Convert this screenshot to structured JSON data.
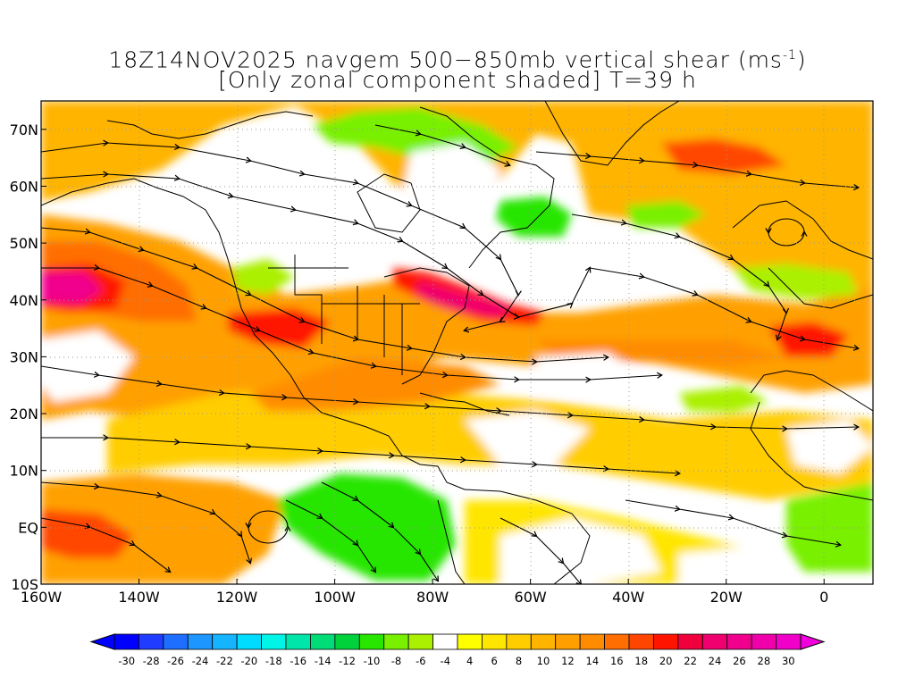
{
  "title": {
    "line1_main": "18Z14NOV2025 navgem 500−850mb vertical shear (ms",
    "line1_sup": "-1",
    "line1_close": ")",
    "line2": "[Only zonal component shaded] T=39 h"
  },
  "axes": {
    "lat_labels": [
      "70N",
      "60N",
      "50N",
      "40N",
      "30N",
      "20N",
      "10N",
      "EQ",
      "10S"
    ],
    "lat_values": [
      70,
      60,
      50,
      40,
      30,
      20,
      10,
      0,
      -10
    ],
    "lon_labels": [
      "160W",
      "140W",
      "120W",
      "100W",
      "80W",
      "60W",
      "40W",
      "20W",
      "0"
    ],
    "lon_values": [
      -160,
      -140,
      -120,
      -100,
      -80,
      -60,
      -40,
      -20,
      0
    ],
    "lat_range": [
      -10,
      75
    ],
    "lon_range": [
      -160,
      10
    ]
  },
  "colorbar": {
    "labels": [
      "-30",
      "-28",
      "-26",
      "-24",
      "-22",
      "-20",
      "-18",
      "-16",
      "-14",
      "-12",
      "-10",
      "-8",
      "-6",
      "-4",
      "4",
      "6",
      "8",
      "10",
      "12",
      "14",
      "16",
      "18",
      "20",
      "22",
      "24",
      "26",
      "28",
      "30"
    ],
    "colors": [
      "#0000ff",
      "#1f3cff",
      "#1e6eff",
      "#1e96ff",
      "#14b4ff",
      "#00dcff",
      "#00f5e6",
      "#00e6aa",
      "#00dc78",
      "#00d23c",
      "#28e600",
      "#78f000",
      "#aaf000",
      "#ffffff",
      "#ffff00",
      "#ffe600",
      "#ffcd00",
      "#ffb400",
      "#ffa000",
      "#ff8c00",
      "#ff6e00",
      "#ff4600",
      "#ff1400",
      "#f0003c",
      "#f0006e",
      "#f0008c",
      "#f000aa",
      "#f000c8"
    ],
    "end_colors": [
      "#0000ff",
      "#f000dc"
    ]
  },
  "chart_data": {
    "type": "heatmap",
    "field": "500-850mb vertical shear, zonal component (m/s)",
    "lat_range": [
      -10,
      75
    ],
    "lon_range": [
      -160,
      10
    ],
    "features": [
      {
        "name": "north-pacific-jet",
        "peak": 28,
        "lat": 42,
        "lon": -157
      },
      {
        "name": "us-east-coast-jet",
        "peak": 26,
        "lat": 38,
        "lon": -70
      },
      {
        "name": "southwest-us-max",
        "peak": 24,
        "lat": 35,
        "lon": -110
      },
      {
        "name": "greenland-sea-max",
        "peak": 22,
        "lat": 64,
        "lon": -25
      },
      {
        "name": "iberia-max",
        "peak": 22,
        "lat": 32,
        "lon": -5
      },
      {
        "name": "equatorial-pacific-max",
        "peak": 22,
        "lat": -2,
        "lon": -150
      },
      {
        "name": "eastern-pacific-easterlies",
        "peak": -10,
        "lat": 2,
        "lon": -92
      },
      {
        "name": "hudson-bay-easterlies",
        "peak": -10,
        "lat": 66,
        "lon": -90
      },
      {
        "name": "labrador-easterlies",
        "peak": -8,
        "lat": 52,
        "lon": -62
      },
      {
        "name": "west-europe-easterlies",
        "peak": -8,
        "lat": 42,
        "lon": -8
      },
      {
        "name": "west-africa-easterlies",
        "peak": -8,
        "lat": 2,
        "lon": 5
      }
    ]
  }
}
